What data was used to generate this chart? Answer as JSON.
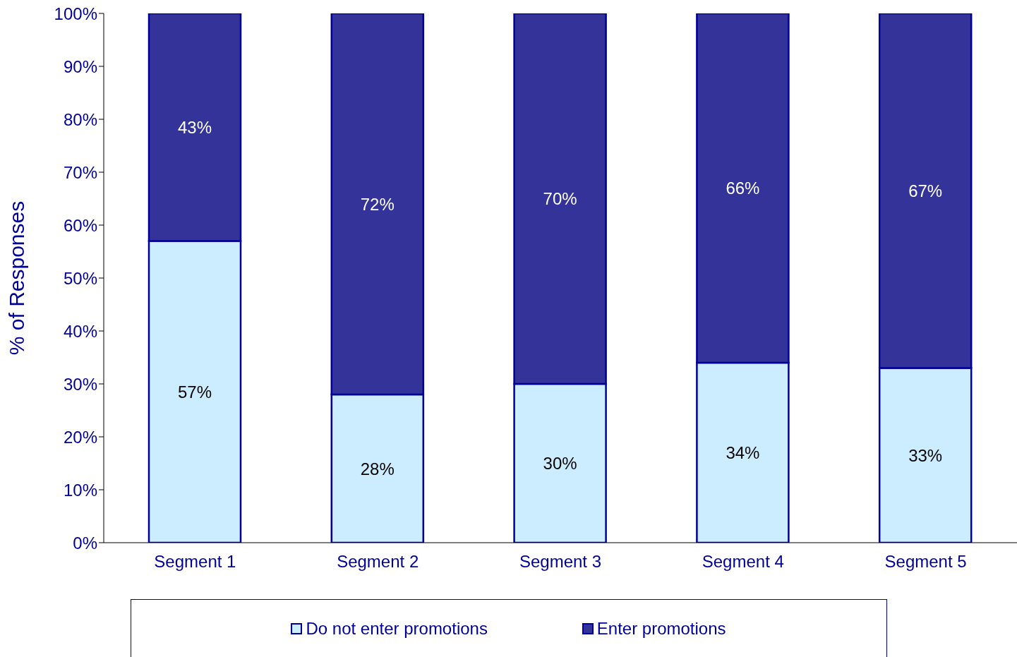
{
  "chart_data": {
    "type": "bar",
    "stacked": true,
    "ylabel": "% of Responses",
    "categories": [
      "Segment 1",
      "Segment 2",
      "Segment 3",
      "Segment 4",
      "Segment 5"
    ],
    "series": [
      {
        "name": "Do not enter promotions",
        "color": "#ccecff",
        "values": [
          57,
          28,
          30,
          34,
          33
        ],
        "value_labels": [
          "57%",
          "28%",
          "30%",
          "34%",
          "33%"
        ]
      },
      {
        "name": "Enter promotions",
        "color": "#333399",
        "values": [
          43,
          72,
          70,
          66,
          67
        ],
        "value_labels": [
          "43%",
          "72%",
          "70%",
          "66%",
          "67%"
        ]
      }
    ],
    "ylim": [
      0,
      100
    ],
    "yticks": [
      {
        "value": 0,
        "label": "0%"
      },
      {
        "value": 10,
        "label": "10%"
      },
      {
        "value": 20,
        "label": "20%"
      },
      {
        "value": 30,
        "label": "30%"
      },
      {
        "value": 40,
        "label": "40%"
      },
      {
        "value": 50,
        "label": "50%"
      },
      {
        "value": 60,
        "label": "60%"
      },
      {
        "value": 70,
        "label": "70%"
      },
      {
        "value": 80,
        "label": "80%"
      },
      {
        "value": 90,
        "label": "90%"
      },
      {
        "value": 100,
        "label": "100%"
      }
    ],
    "grid": false,
    "legend": "bottom"
  }
}
